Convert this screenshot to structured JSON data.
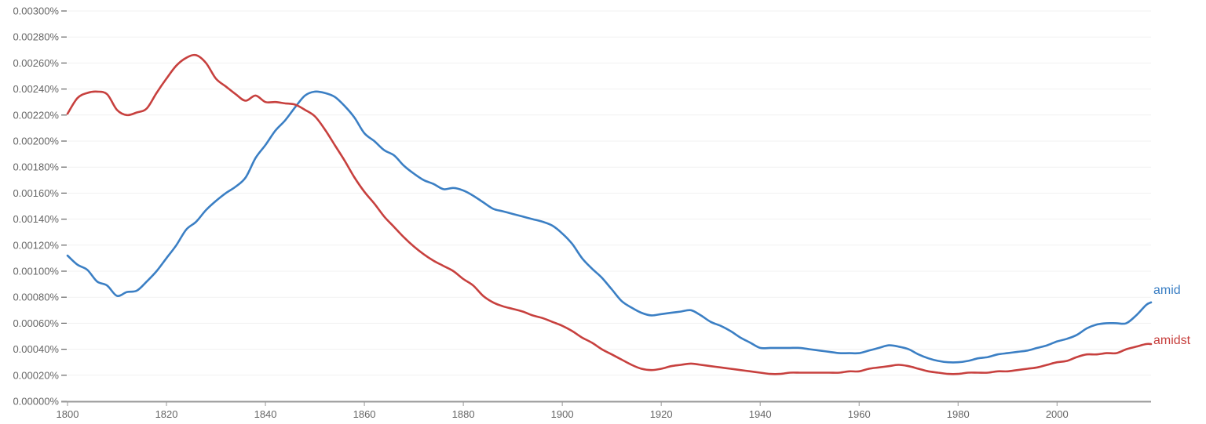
{
  "chart_data": {
    "type": "line",
    "title": "",
    "xlabel": "",
    "ylabel": "",
    "xlim": [
      1800,
      2019
    ],
    "ylim": [
      0,
      0.003
    ],
    "grid": true,
    "legend_position": "inline-right",
    "y_ticks": [
      "0.00000%",
      "0.00020%",
      "0.00040%",
      "0.00060%",
      "0.00080%",
      "0.00100%",
      "0.00120%",
      "0.00140%",
      "0.00160%",
      "0.00180%",
      "0.00200%",
      "0.00220%",
      "0.00240%",
      "0.00260%",
      "0.00280%",
      "0.00300%"
    ],
    "x_ticks": [
      "1800",
      "1820",
      "1840",
      "1860",
      "1880",
      "1900",
      "1920",
      "1940",
      "1960",
      "1980",
      "2000"
    ],
    "x": [
      1800,
      1802,
      1804,
      1806,
      1808,
      1810,
      1812,
      1814,
      1816,
      1818,
      1820,
      1822,
      1824,
      1826,
      1828,
      1830,
      1832,
      1834,
      1836,
      1838,
      1840,
      1842,
      1844,
      1846,
      1848,
      1850,
      1852,
      1854,
      1856,
      1858,
      1860,
      1862,
      1864,
      1866,
      1868,
      1870,
      1872,
      1874,
      1876,
      1878,
      1880,
      1882,
      1884,
      1886,
      1888,
      1890,
      1892,
      1894,
      1896,
      1898,
      1900,
      1902,
      1904,
      1906,
      1908,
      1910,
      1912,
      1914,
      1916,
      1918,
      1920,
      1922,
      1924,
      1926,
      1928,
      1930,
      1932,
      1934,
      1936,
      1938,
      1940,
      1942,
      1944,
      1946,
      1948,
      1950,
      1952,
      1954,
      1956,
      1958,
      1960,
      1962,
      1964,
      1966,
      1968,
      1970,
      1972,
      1974,
      1976,
      1978,
      1980,
      1982,
      1984,
      1986,
      1988,
      1990,
      1992,
      1994,
      1996,
      1998,
      2000,
      2002,
      2004,
      2006,
      2008,
      2010,
      2012,
      2014,
      2016,
      2018,
      2019
    ],
    "series": [
      {
        "name": "amid",
        "color": "#3b7fc4",
        "values": [
          0.00112,
          0.00105,
          0.00101,
          0.00092,
          0.00089,
          0.00081,
          0.00084,
          0.00085,
          0.00092,
          0.001,
          0.0011,
          0.0012,
          0.00132,
          0.00138,
          0.00147,
          0.00154,
          0.0016,
          0.00165,
          0.00172,
          0.00187,
          0.00197,
          0.00208,
          0.00216,
          0.00226,
          0.00235,
          0.00238,
          0.00237,
          0.00234,
          0.00227,
          0.00218,
          0.00206,
          0.002,
          0.00193,
          0.00189,
          0.00181,
          0.00175,
          0.0017,
          0.00167,
          0.00163,
          0.00164,
          0.00162,
          0.00158,
          0.00153,
          0.00148,
          0.00146,
          0.00144,
          0.00142,
          0.0014,
          0.00138,
          0.00135,
          0.00129,
          0.00121,
          0.0011,
          0.00102,
          0.00095,
          0.00086,
          0.00077,
          0.00072,
          0.00068,
          0.00066,
          0.00067,
          0.00068,
          0.00069,
          0.0007,
          0.00066,
          0.00061,
          0.00058,
          0.00054,
          0.00049,
          0.00045,
          0.00041,
          0.00041,
          0.00041,
          0.00041,
          0.00041,
          0.0004,
          0.00039,
          0.00038,
          0.00037,
          0.00037,
          0.00037,
          0.00039,
          0.00041,
          0.00043,
          0.00042,
          0.0004,
          0.00036,
          0.00033,
          0.00031,
          0.0003,
          0.0003,
          0.00031,
          0.00033,
          0.00034,
          0.00036,
          0.00037,
          0.00038,
          0.00039,
          0.00041,
          0.00043,
          0.00046,
          0.00048,
          0.00051,
          0.00056,
          0.00059,
          0.0006,
          0.0006,
          0.0006,
          0.00066,
          0.00074,
          0.00076
        ]
      },
      {
        "name": "amidst",
        "color": "#c7403e",
        "values": [
          0.00221,
          0.00233,
          0.00237,
          0.00238,
          0.00236,
          0.00224,
          0.0022,
          0.00222,
          0.00225,
          0.00237,
          0.00248,
          0.00258,
          0.00264,
          0.00266,
          0.0026,
          0.00248,
          0.00242,
          0.00236,
          0.00231,
          0.00235,
          0.0023,
          0.0023,
          0.00229,
          0.00228,
          0.00224,
          0.00219,
          0.00209,
          0.00197,
          0.00185,
          0.00172,
          0.00161,
          0.00152,
          0.00142,
          0.00134,
          0.00126,
          0.00119,
          0.00113,
          0.00108,
          0.00104,
          0.001,
          0.00094,
          0.00089,
          0.00081,
          0.00076,
          0.00073,
          0.00071,
          0.00069,
          0.00066,
          0.00064,
          0.00061,
          0.00058,
          0.00054,
          0.00049,
          0.00045,
          0.0004,
          0.00036,
          0.00032,
          0.00028,
          0.00025,
          0.00024,
          0.00025,
          0.00027,
          0.00028,
          0.00029,
          0.00028,
          0.00027,
          0.00026,
          0.00025,
          0.00024,
          0.00023,
          0.00022,
          0.00021,
          0.00021,
          0.00022,
          0.00022,
          0.00022,
          0.00022,
          0.00022,
          0.00022,
          0.00023,
          0.00023,
          0.00025,
          0.00026,
          0.00027,
          0.00028,
          0.00027,
          0.00025,
          0.00023,
          0.00022,
          0.00021,
          0.00021,
          0.00022,
          0.00022,
          0.00022,
          0.00023,
          0.00023,
          0.00024,
          0.00025,
          0.00026,
          0.00028,
          0.0003,
          0.00031,
          0.00034,
          0.00036,
          0.00036,
          0.00037,
          0.00037,
          0.0004,
          0.00042,
          0.00044,
          0.00044
        ]
      }
    ]
  },
  "labels": {
    "amid": "amid",
    "amidst": "amidst"
  }
}
